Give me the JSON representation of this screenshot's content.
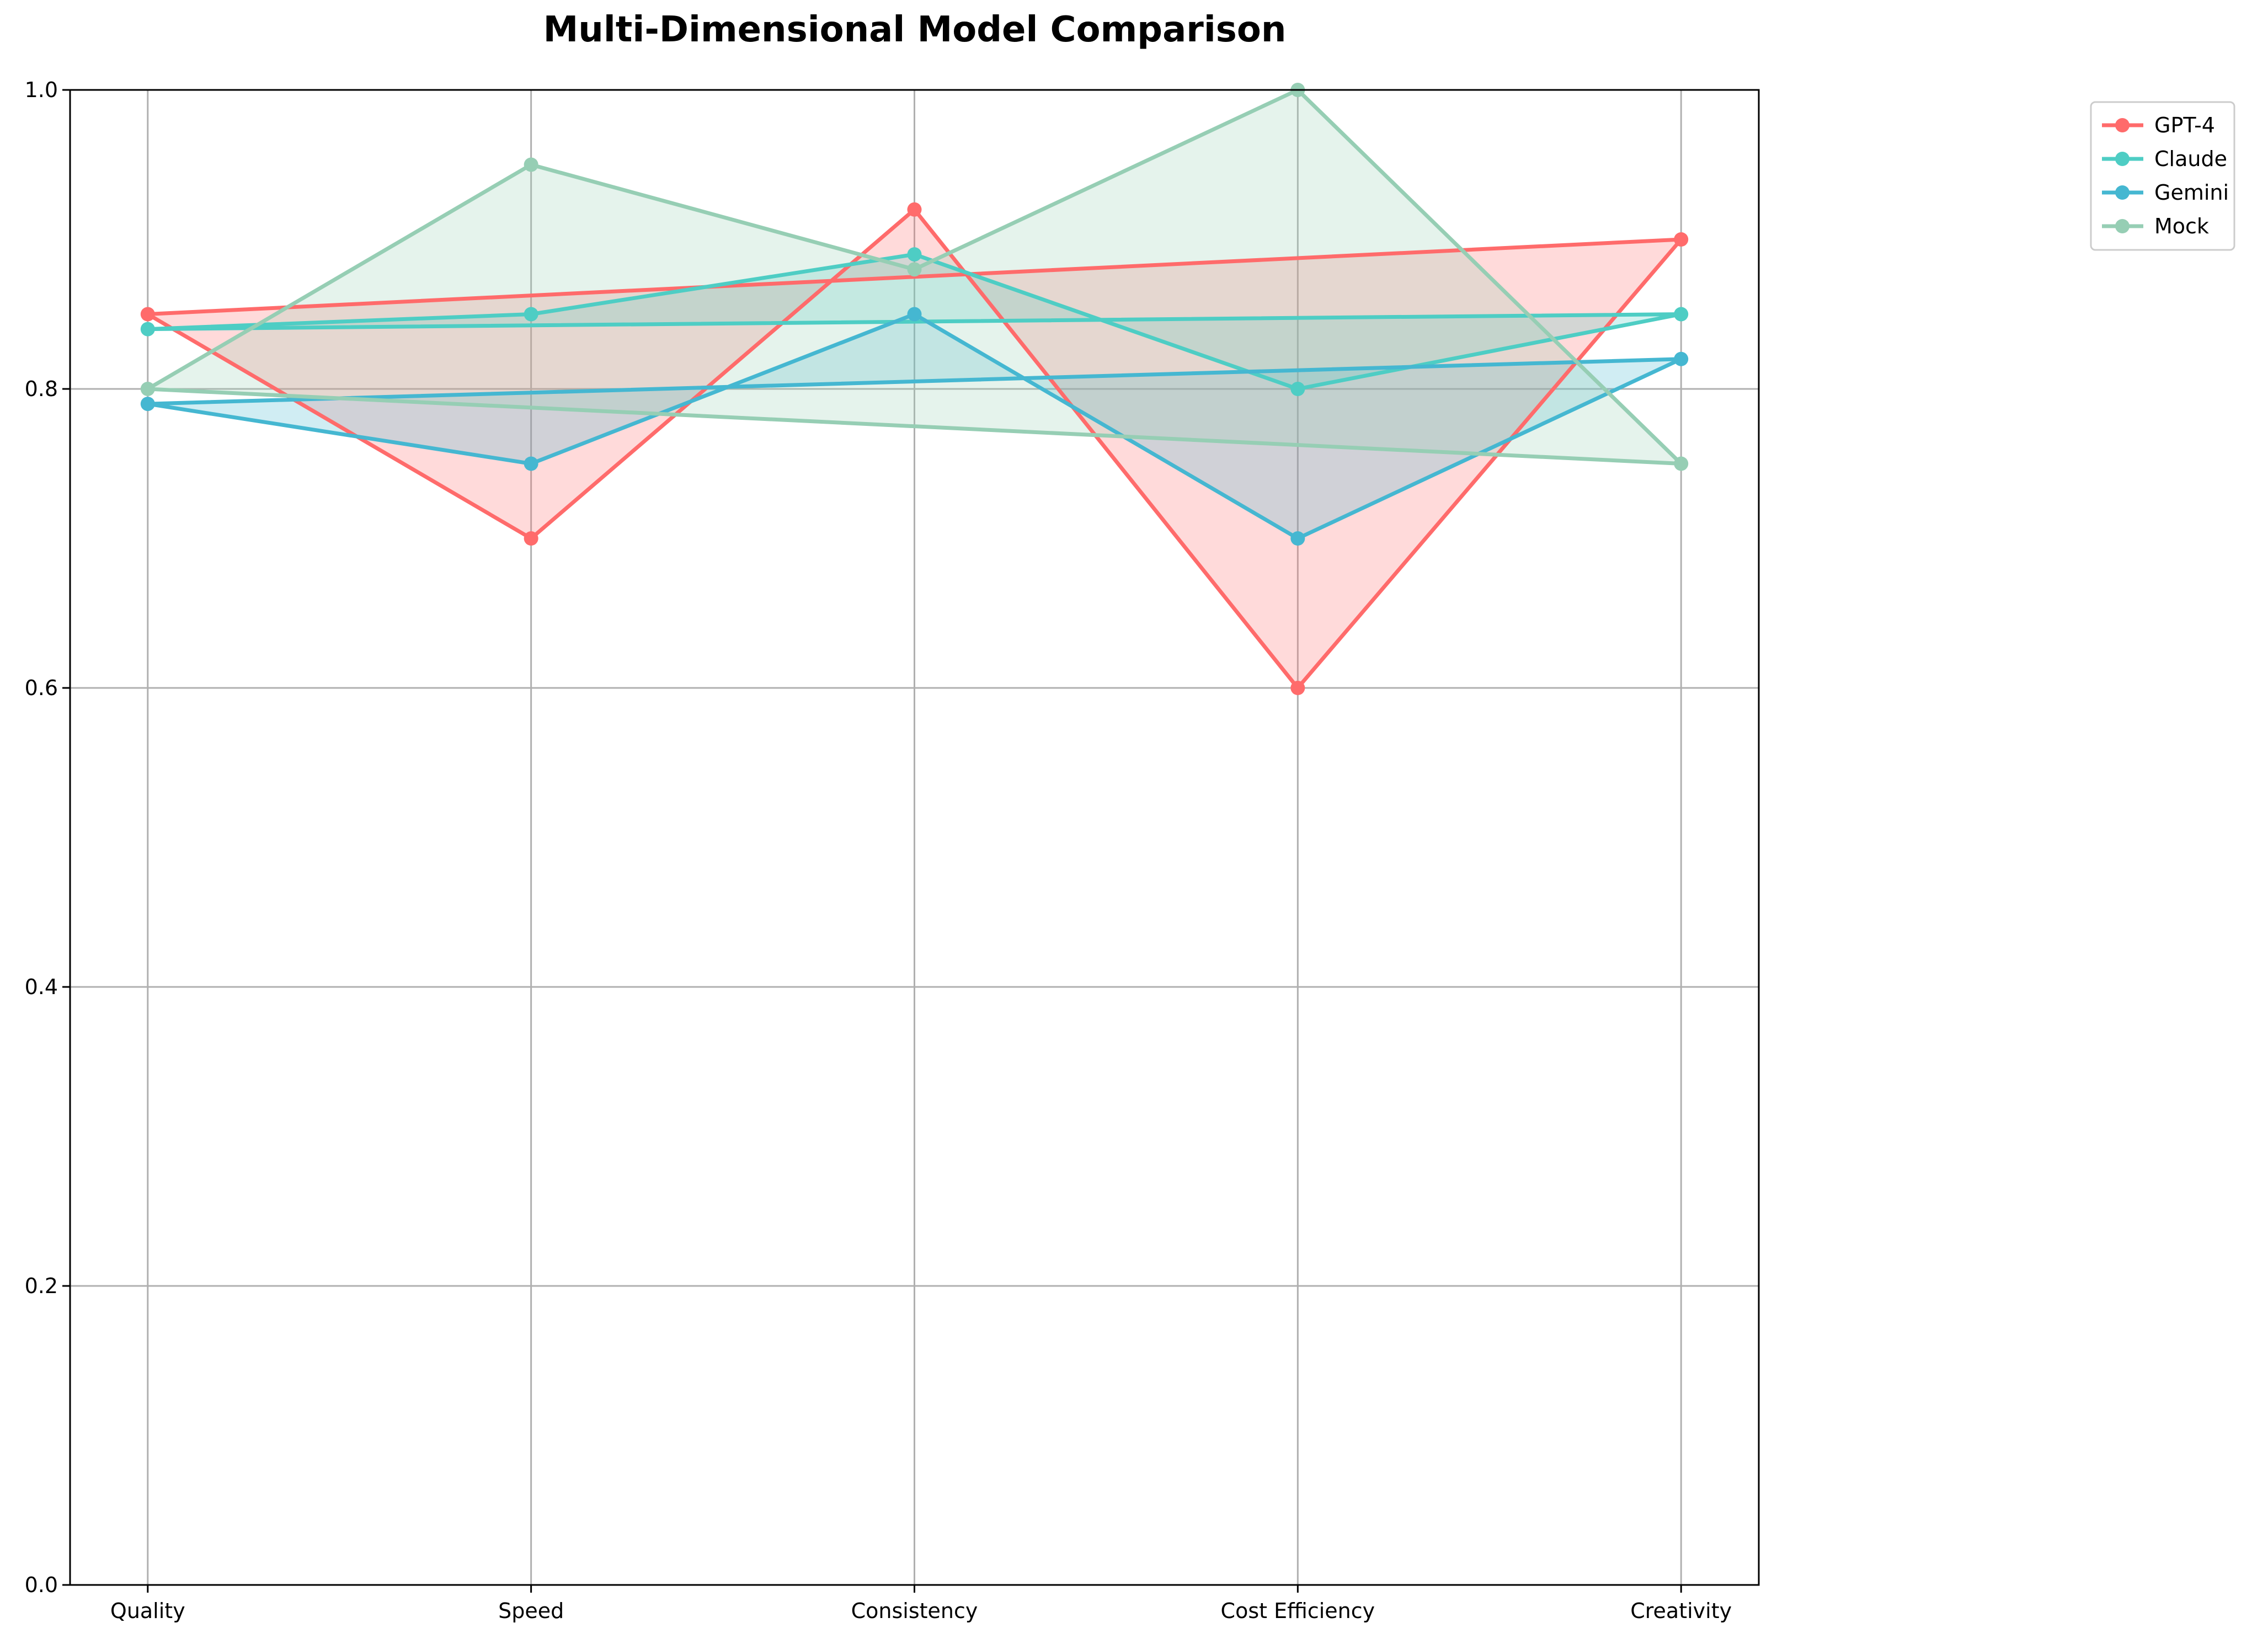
{
  "chart_data": {
    "type": "line",
    "title": "Multi-Dimensional Model Comparison",
    "xlabel": "",
    "ylabel": "",
    "categories": [
      "Quality",
      "Speed",
      "Consistency",
      "Cost Efficiency",
      "Creativity"
    ],
    "ylim": [
      0,
      1.0
    ],
    "yticks": [
      "0.0",
      "0.2",
      "0.4",
      "0.6",
      "0.8",
      "1.0"
    ],
    "ytick_values": [
      0,
      0.2,
      0.4,
      0.6,
      0.8,
      1.0
    ],
    "grid": true,
    "legend_position": "top-right, outside plot",
    "closed_polygon_fill": true,
    "series": [
      {
        "name": "GPT-4",
        "color": "#ff6b6b",
        "values": [
          0.85,
          0.7,
          0.92,
          0.6,
          0.9
        ]
      },
      {
        "name": "Claude",
        "color": "#4ecdc4",
        "values": [
          0.84,
          0.85,
          0.89,
          0.8,
          0.85
        ]
      },
      {
        "name": "Gemini",
        "color": "#45b7d1",
        "values": [
          0.79,
          0.75,
          0.85,
          0.7,
          0.82
        ]
      },
      {
        "name": "Mock",
        "color": "#96ceb4",
        "values": [
          0.8,
          0.95,
          0.88,
          1.0,
          0.75
        ]
      }
    ]
  }
}
